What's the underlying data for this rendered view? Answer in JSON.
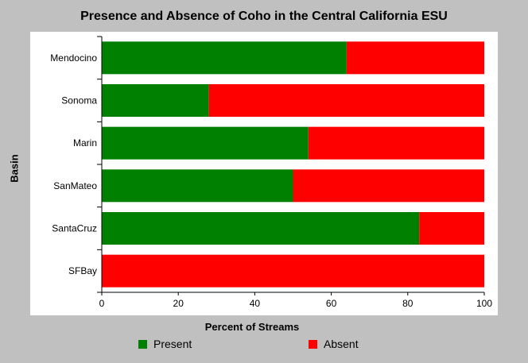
{
  "chart_data": {
    "type": "bar",
    "orientation": "horizontal",
    "stacked": true,
    "title": "Presence and Absence of Coho in the Central California ESU",
    "xlabel": "Percent of Streams",
    "ylabel": "Basin",
    "xlim": [
      0,
      100
    ],
    "x_ticks": [
      "0",
      "20",
      "40",
      "60",
      "80",
      "100"
    ],
    "categories": [
      "Mendocino",
      "Sonoma",
      "Marin",
      "SanMateo",
      "SantaCruz",
      "SFBay"
    ],
    "series": [
      {
        "name": "Present",
        "color": "#008000",
        "values": [
          64,
          28,
          54,
          50,
          83,
          0
        ]
      },
      {
        "name": "Absent",
        "color": "#ff0000",
        "values": [
          36,
          72,
          46,
          50,
          17,
          100
        ]
      }
    ],
    "grid": false,
    "legend_position": "bottom"
  }
}
